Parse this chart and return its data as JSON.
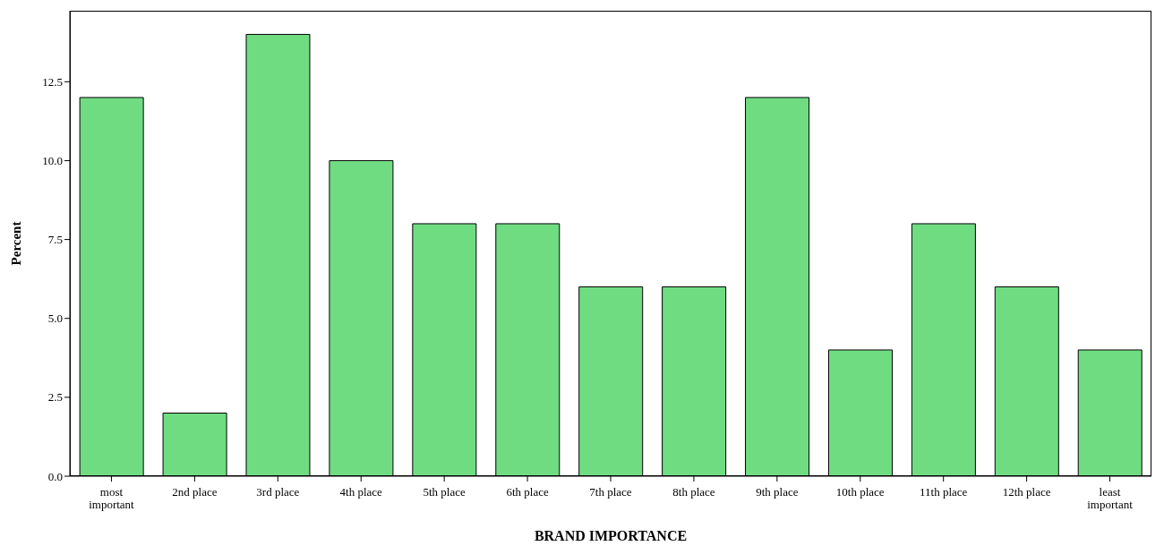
{
  "chart_data": {
    "type": "bar",
    "xlabel": "BRAND IMPORTANCE",
    "ylabel": "Percent",
    "categories": [
      "most important",
      "2nd place",
      "3rd place",
      "4th place",
      "5th place",
      "6th place",
      "7th place",
      "8th place",
      "9th place",
      "10th place",
      "11th place",
      "12th place",
      "least important"
    ],
    "values": [
      12,
      2,
      14,
      10,
      8,
      8,
      6,
      6,
      12,
      4,
      8,
      6,
      4
    ],
    "color": "#70dc82",
    "ylim": [
      0,
      14.75
    ],
    "yticks": [
      {
        "value": 0,
        "label": "0.0"
      },
      {
        "value": 2.5,
        "label": "2.5"
      },
      {
        "value": 5,
        "label": "5.0"
      },
      {
        "value": 7.5,
        "label": "7.5"
      },
      {
        "value": 10,
        "label": "10.0"
      },
      {
        "value": 12.5,
        "label": "12.5"
      }
    ],
    "grid": false,
    "legend": false
  }
}
